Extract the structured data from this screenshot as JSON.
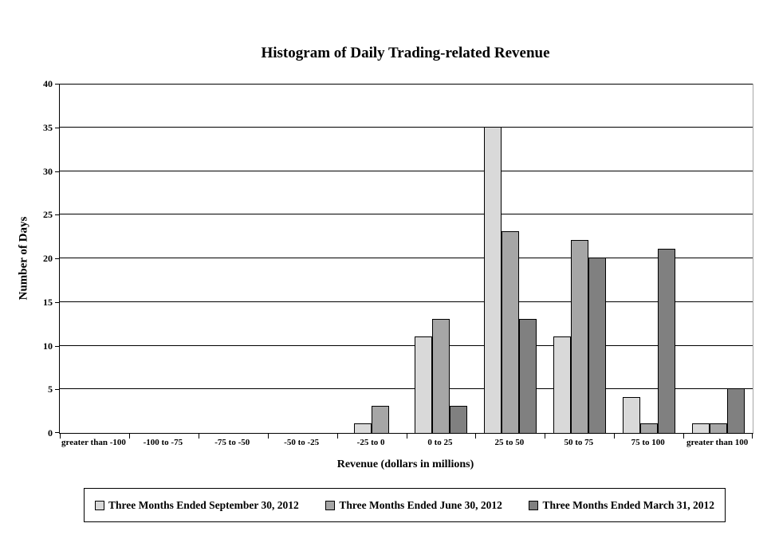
{
  "chart_data": {
    "type": "bar",
    "title": "Histogram of Daily Trading-related Revenue",
    "xlabel": "Revenue (dollars in millions)",
    "ylabel": "Number of Days",
    "ylim": [
      0,
      40
    ],
    "ytick_step": 5,
    "grid": true,
    "gridline_color": "#000000",
    "legend_position": "bottom-boxed",
    "categories": [
      "greater than -100",
      "-100 to -75",
      "-75 to -50",
      "-50 to -25",
      "-25 to 0",
      "0 to 25",
      "25 to 50",
      "50 to 75",
      "75 to 100",
      "greater than 100"
    ],
    "series": [
      {
        "name": "Three Months Ended September 30, 2012",
        "color": "#d9d9d9",
        "values": [
          0,
          0,
          0,
          0,
          1,
          11,
          35,
          11,
          4,
          1
        ]
      },
      {
        "name": "Three Months Ended June 30, 2012",
        "color": "#a6a6a6",
        "values": [
          0,
          0,
          0,
          0,
          3,
          13,
          23,
          22,
          1,
          1
        ]
      },
      {
        "name": "Three Months Ended March 31, 2012",
        "color": "#808080",
        "values": [
          0,
          0,
          0,
          0,
          0,
          3,
          13,
          20,
          21,
          5
        ]
      }
    ]
  }
}
